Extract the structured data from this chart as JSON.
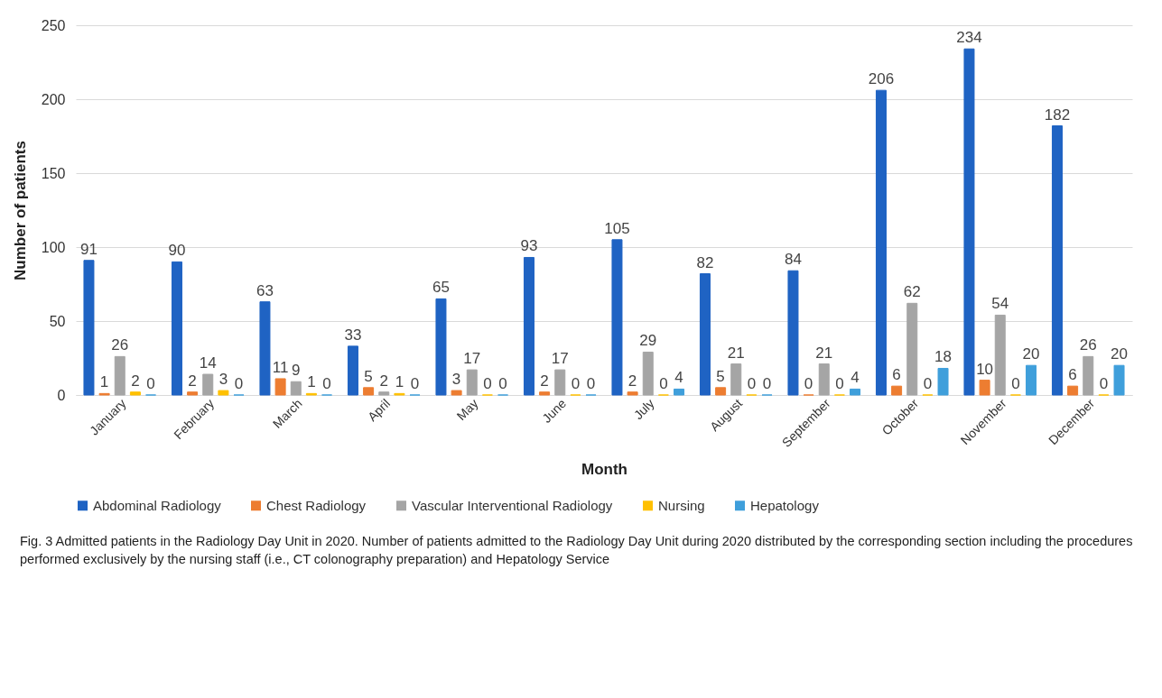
{
  "chart_data": {
    "type": "bar",
    "xlabel": "Month",
    "ylabel": "Number of patients",
    "categories": [
      "January",
      "February",
      "March",
      "April",
      "May",
      "June",
      "July",
      "August",
      "September",
      "October",
      "November",
      "December"
    ],
    "series": [
      {
        "name": "Abdominal Radiology",
        "color": "#1f63c3",
        "values": [
          91,
          90,
          63,
          33,
          65,
          93,
          105,
          82,
          84,
          206,
          234,
          182
        ]
      },
      {
        "name": "Chest Radiology",
        "color": "#ed7d31",
        "values": [
          1,
          2,
          11,
          5,
          3,
          2,
          2,
          5,
          0,
          6,
          10,
          6
        ]
      },
      {
        "name": "Vascular Interventional Radiology",
        "color": "#a5a5a5",
        "values": [
          26,
          14,
          9,
          2,
          17,
          17,
          29,
          21,
          21,
          62,
          54,
          26
        ]
      },
      {
        "name": "Nursing",
        "color": "#ffc000",
        "values": [
          2,
          3,
          1,
          1,
          0,
          0,
          0,
          0,
          0,
          0,
          0,
          0
        ]
      },
      {
        "name": "Hepatology",
        "color": "#3f9fdb",
        "values": [
          0,
          0,
          0,
          0,
          0,
          0,
          4,
          0,
          4,
          18,
          20,
          20
        ]
      }
    ],
    "ylim": [
      0,
      250
    ],
    "yticks": [
      0,
      50,
      100,
      150,
      200,
      250
    ],
    "grid": "y",
    "legend": "bottom",
    "data_labels": true,
    "annotations": [
      "Fig. 3 Admitted patients in the Radiology Day Unit in 2020. Number of patients admitted to the Radiology Day Unit during 2020 distributed by the corresponding section including the procedures performed exclusively by the nursing staff (i.e., CT colonography preparation) and Hepatology Service"
    ]
  }
}
